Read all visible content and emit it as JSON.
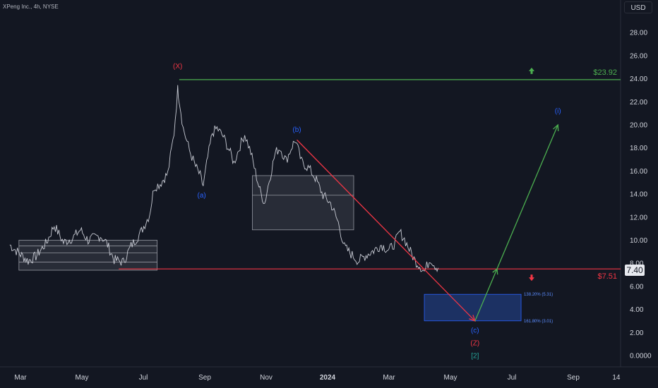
{
  "header": {
    "symbol_title": "XPeng Inc., 4h, NYSE",
    "currency_label": "USD"
  },
  "last_price_badge": "7.40",
  "chart_data": {
    "type": "line",
    "title": "XPeng Inc., 4h, NYSE",
    "ylim": [
      0,
      30
    ],
    "y_ticks": [
      {
        "v": 0,
        "label": "0.0000"
      },
      {
        "v": 2,
        "label": "2.00"
      },
      {
        "v": 4,
        "label": "4.00"
      },
      {
        "v": 6,
        "label": "6.00"
      },
      {
        "v": 8,
        "label": "8.00"
      },
      {
        "v": 10,
        "label": "10.00"
      },
      {
        "v": 12,
        "label": "12.00"
      },
      {
        "v": 14,
        "label": "14.00"
      },
      {
        "v": 16,
        "label": "16.00"
      },
      {
        "v": 18,
        "label": "18.00"
      },
      {
        "v": 20,
        "label": "20.00"
      },
      {
        "v": 22,
        "label": "22.00"
      },
      {
        "v": 24,
        "label": "24.00"
      },
      {
        "v": 26,
        "label": "26.00"
      },
      {
        "v": 28,
        "label": "28.00"
      }
    ],
    "x_ticks": [
      {
        "t": 0,
        "label": "Mar"
      },
      {
        "t": 2,
        "label": "May"
      },
      {
        "t": 4,
        "label": "Jul"
      },
      {
        "t": 6,
        "label": "Sep"
      },
      {
        "t": 8,
        "label": "Nov"
      },
      {
        "t": 10,
        "label": "2024",
        "bold": true
      },
      {
        "t": 12,
        "label": "Mar"
      },
      {
        "t": 14,
        "label": "May"
      },
      {
        "t": 16,
        "label": "Jul"
      },
      {
        "t": 18,
        "label": "Sep"
      },
      {
        "t": 19.4,
        "label": "14"
      }
    ],
    "price_path": [
      [
        -0.35,
        9.6
      ],
      [
        -0.1,
        9.0
      ],
      [
        0.25,
        8.2
      ],
      [
        0.5,
        8.6
      ],
      [
        0.85,
        9.8
      ],
      [
        1.1,
        11.3
      ],
      [
        1.4,
        9.8
      ],
      [
        1.7,
        10.2
      ],
      [
        1.95,
        10.9
      ],
      [
        2.2,
        10.0
      ],
      [
        2.6,
        10.4
      ],
      [
        2.8,
        9.8
      ],
      [
        3.05,
        8.3
      ],
      [
        3.35,
        8.1
      ],
      [
        3.6,
        9.5
      ],
      [
        3.9,
        10.6
      ],
      [
        4.2,
        12.2
      ],
      [
        4.35,
        14.6
      ],
      [
        4.55,
        14.9
      ],
      [
        4.8,
        15.8
      ],
      [
        5.0,
        19.3
      ],
      [
        5.12,
        23.1
      ],
      [
        5.18,
        22.0
      ],
      [
        5.3,
        19.7
      ],
      [
        5.5,
        17.8
      ],
      [
        5.7,
        16.4
      ],
      [
        5.85,
        15.6
      ],
      [
        5.95,
        14.7
      ],
      [
        6.1,
        17.2
      ],
      [
        6.25,
        19.3
      ],
      [
        6.4,
        19.7
      ],
      [
        6.6,
        19.0
      ],
      [
        6.8,
        17.8
      ],
      [
        6.95,
        16.7
      ],
      [
        7.15,
        18.2
      ],
      [
        7.3,
        19.2
      ],
      [
        7.5,
        17.6
      ],
      [
        7.65,
        15.9
      ],
      [
        7.8,
        14.3
      ],
      [
        7.95,
        13.2
      ],
      [
        8.1,
        15.2
      ],
      [
        8.3,
        17.6
      ],
      [
        8.45,
        18.0
      ],
      [
        8.65,
        16.9
      ],
      [
        8.85,
        18.2
      ],
      [
        8.95,
        18.7
      ],
      [
        9.15,
        16.8
      ],
      [
        9.4,
        16.2
      ],
      [
        9.6,
        15.4
      ],
      [
        9.85,
        13.9
      ],
      [
        10.1,
        13.2
      ],
      [
        10.35,
        11.5
      ],
      [
        10.55,
        9.4
      ],
      [
        10.8,
        8.7
      ],
      [
        11.0,
        8.2
      ],
      [
        11.25,
        8.7
      ],
      [
        11.5,
        9.1
      ],
      [
        11.75,
        9.6
      ],
      [
        12.0,
        9.1
      ],
      [
        12.2,
        9.8
      ],
      [
        12.35,
        10.7
      ],
      [
        12.5,
        10.1
      ],
      [
        12.7,
        9.0
      ],
      [
        12.85,
        8.2
      ],
      [
        13.0,
        7.8
      ],
      [
        13.15,
        7.3
      ],
      [
        13.35,
        8.4
      ],
      [
        13.5,
        7.8
      ],
      [
        13.6,
        7.6
      ]
    ],
    "boxes": [
      {
        "x0": -0.05,
        "x1": 4.45,
        "y0": 7.4,
        "y1": 10.0,
        "lines": [
          8.1,
          8.9,
          9.5
        ]
      },
      {
        "x0": 7.55,
        "x1": 10.85,
        "y0": 10.9,
        "y1": 15.6,
        "lines": [
          13.9
        ]
      }
    ],
    "target_zone": {
      "x0": 13.15,
      "x1": 16.3,
      "y0": 3.01,
      "y1": 5.31,
      "labels": [
        {
          "y": 5.31,
          "text": "138.20% (5.31)"
        },
        {
          "y": 3.01,
          "text": "161.80% (3.01)"
        }
      ]
    },
    "resistance": {
      "value": 23.92,
      "label": "$23.92",
      "color": "#4caf50",
      "x0": 5.17,
      "arrow": "up"
    },
    "support": {
      "value": 7.51,
      "label": "$7.51",
      "color": "#f23645",
      "x0": 3.2,
      "arrow": "down"
    },
    "projections": [
      {
        "color": "#f23645",
        "points": [
          [
            9.0,
            18.7
          ],
          [
            14.8,
            3.0
          ]
        ]
      },
      {
        "color": "#4caf50",
        "points": [
          [
            14.8,
            3.0
          ],
          [
            17.5,
            20.0
          ]
        ]
      }
    ],
    "wave_labels": [
      {
        "x": 5.12,
        "y": 24.9,
        "text": "(X)",
        "color": "#f23645"
      },
      {
        "x": 5.9,
        "y": 13.7,
        "text": "(a)",
        "color": "#2962ff"
      },
      {
        "x": 9.0,
        "y": 19.4,
        "text": "(b)",
        "color": "#2962ff"
      },
      {
        "x": 14.8,
        "y": 2.0,
        "text": "(c)",
        "color": "#2962ff"
      },
      {
        "x": 14.8,
        "y": 0.9,
        "text": "(Z)",
        "color": "#f23645"
      },
      {
        "x": 14.8,
        "y": -0.2,
        "text": "[2]",
        "color": "#26a69a"
      },
      {
        "x": 17.5,
        "y": 21.0,
        "text": "(i)",
        "color": "#2962ff"
      }
    ],
    "grid": false,
    "legend": "none"
  }
}
